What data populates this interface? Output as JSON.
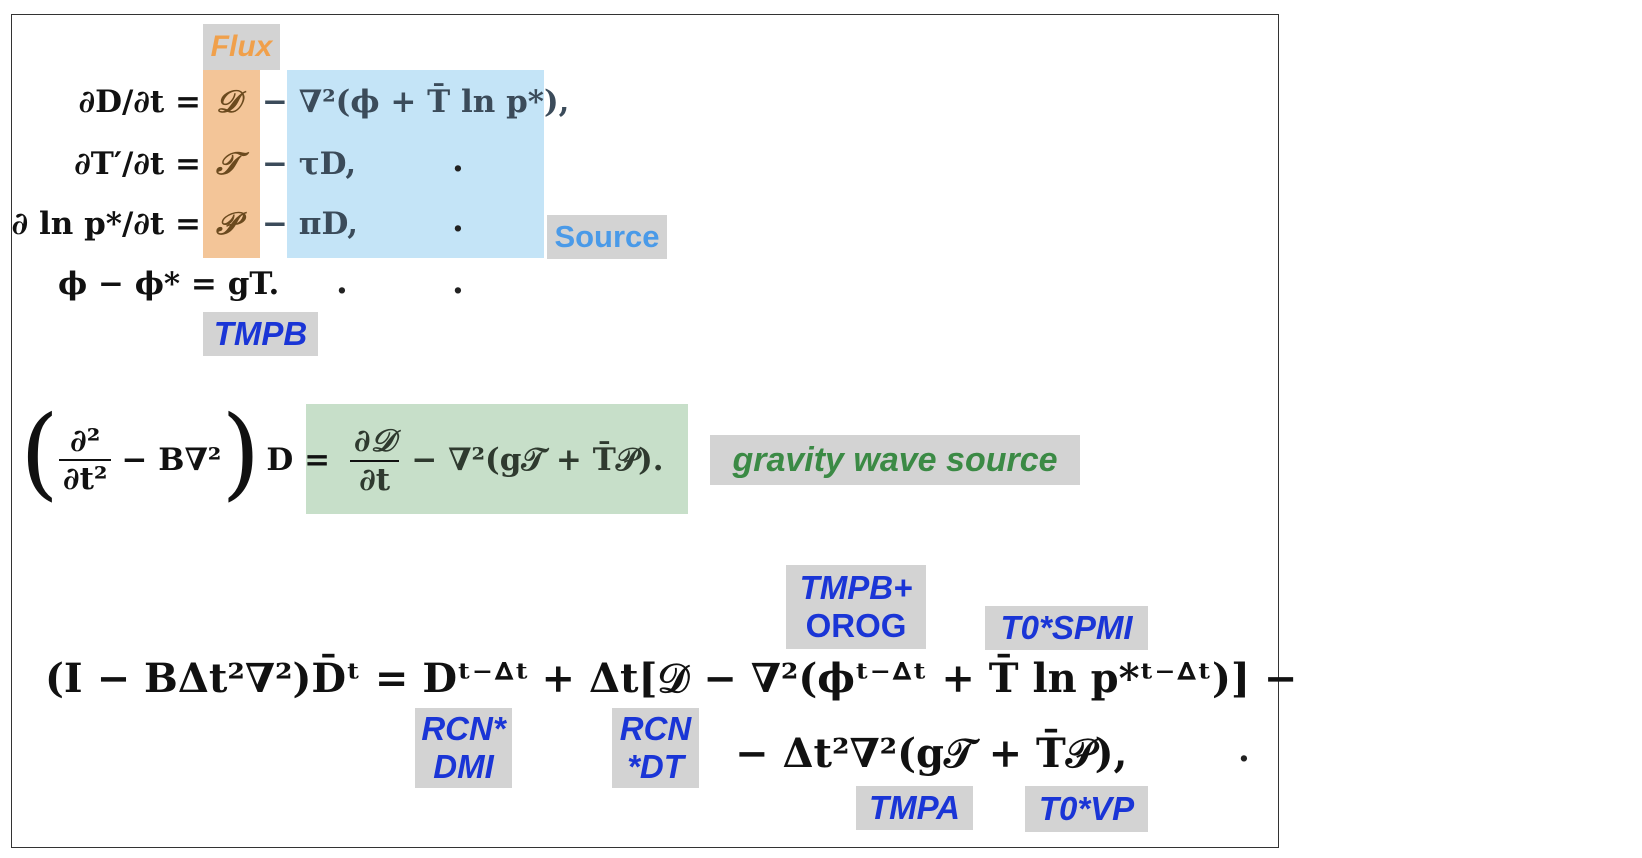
{
  "labels": {
    "flux": "Flux",
    "source": "Source",
    "tmpb": "TMPB",
    "gravity_wave_source": "gravity wave source",
    "tmpb_orog_line1": "TMPB+",
    "tmpb_orog_line2": "OROG",
    "t0_spmi": "T0*SPMI",
    "rcn_dmi_line1": "RCN*",
    "rcn_dmi_line2": "DMI",
    "rcn_dt_line1": "RCN",
    "rcn_dt_line2": "*DT",
    "tmpa": "TMPA",
    "t0_vp": "T0*VP"
  },
  "equations": {
    "eq1_lhs": "∂D/∂t =",
    "eq1_flux": "𝒟",
    "eq1_rest": "− ∇²(ϕ + T̄ ln p*),",
    "eq2_lhs": "∂T′/∂t =",
    "eq2_flux": "𝒯",
    "eq2_rest": "− τD,",
    "eq3_lhs": "∂ ln p*/∂t =",
    "eq3_flux": "𝒫",
    "eq3_rest": "− πD,",
    "eq4_lhs": "ϕ − ϕ* = gT.",
    "wave_lhs_open": "(",
    "wave_frac_num": "∂²",
    "wave_frac_den": "∂t²",
    "wave_mid": "− B∇²",
    "wave_lhs_close": ")",
    "wave_d_eq": "D =",
    "wave_rhs_num": "∂𝒟",
    "wave_rhs_den": "∂t",
    "wave_rhs_rest": "− ∇²(g𝒯 + T̄𝒫).",
    "impl_line1_lhs": "(I − BΔt²∇²)D̄ᵗ =",
    "impl_line1_d": "Dᵗ⁻ᐞᵗ",
    "impl_line1_mid": "+ Δt[𝒟 − ∇²(ϕᵗ⁻ᐞᵗ + T̄ ln p*ᵗ⁻ᐞᵗ)] −",
    "impl_line2": "− Δt²∇²(g𝒯 + T̄𝒫),"
  },
  "dots": {
    "d1": ".",
    "d2": ".",
    "d3": ".",
    "d4": ".",
    "d5": ".",
    "d6": "."
  },
  "colors": {
    "flux_box": "#f3c598",
    "flux_text": "#f0a04b",
    "source_box": "#c4e4f7",
    "source_text": "#4a9ae8",
    "green_box": "#c7dfc9",
    "green_text": "#3b8a45",
    "blue_tag_text": "#1a35d6",
    "grey_tag": "#d3d3d3"
  }
}
